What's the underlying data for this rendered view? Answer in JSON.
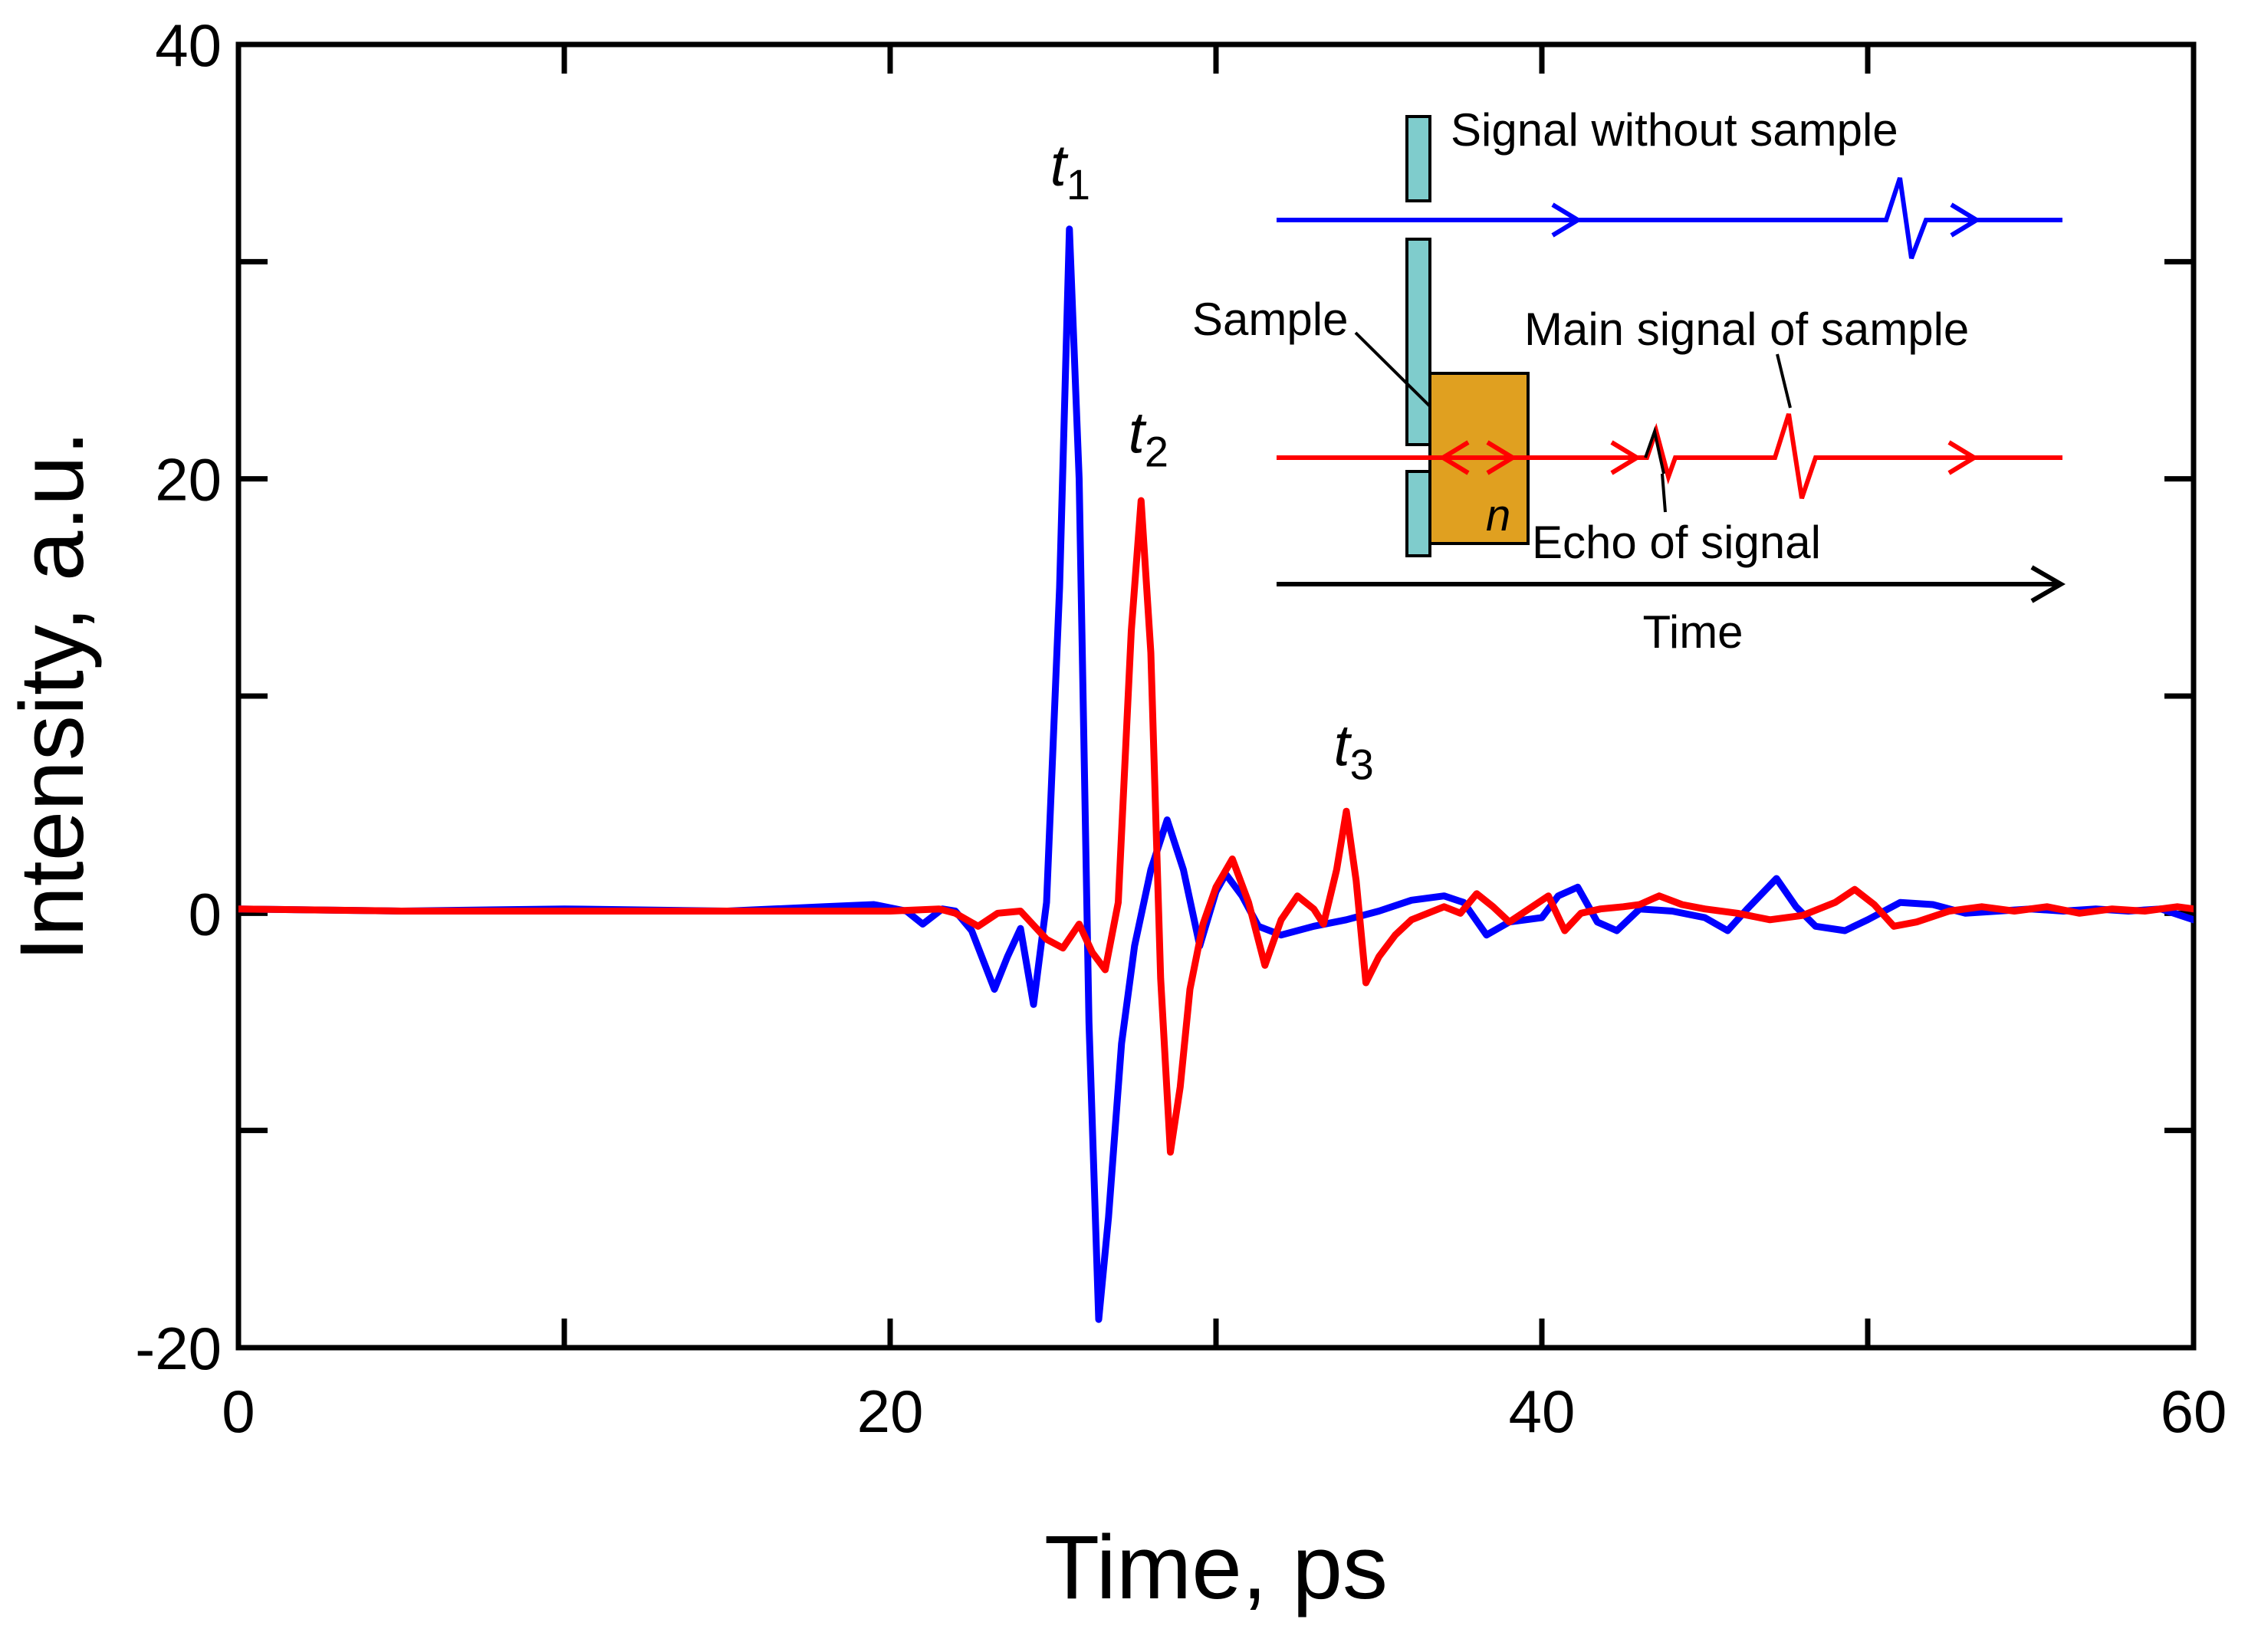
{
  "chart_data": {
    "type": "line",
    "title": "",
    "xlabel": "Time, ps",
    "ylabel": "Intensity, a.u.",
    "xlim": [
      0,
      60
    ],
    "ylim": [
      -20,
      40
    ],
    "x_ticks": [
      0,
      20,
      40,
      60
    ],
    "x_minor_ticks": [
      10,
      30,
      50
    ],
    "y_ticks": [
      -20,
      0,
      20,
      40
    ],
    "y_minor_ticks": [
      -10,
      10,
      30
    ],
    "x_tick_labels": [
      "0",
      "20",
      "40",
      "60"
    ],
    "y_tick_labels": [
      "-20",
      "0",
      "20",
      "40"
    ],
    "grid": false,
    "series": [
      {
        "name": "Signal without sample",
        "color": "#0000ff",
        "points": [
          [
            0,
            0.2
          ],
          [
            5,
            0.1
          ],
          [
            10,
            0.2
          ],
          [
            15,
            0.1
          ],
          [
            18,
            0.3
          ],
          [
            19.5,
            0.4
          ],
          [
            20.5,
            0.1
          ],
          [
            21,
            -0.5
          ],
          [
            21.6,
            0.2
          ],
          [
            22,
            0.1
          ],
          [
            22.5,
            -0.8
          ],
          [
            23.2,
            -3.5
          ],
          [
            23.6,
            -2
          ],
          [
            24,
            -0.7
          ],
          [
            24.4,
            -4.2
          ],
          [
            24.8,
            0.5
          ],
          [
            25.2,
            15
          ],
          [
            25.5,
            31.5
          ],
          [
            25.8,
            20
          ],
          [
            26.1,
            -5
          ],
          [
            26.4,
            -18.7
          ],
          [
            26.7,
            -14
          ],
          [
            27.1,
            -6
          ],
          [
            27.5,
            -1.5
          ],
          [
            28,
            2
          ],
          [
            28.5,
            4.3
          ],
          [
            29,
            2
          ],
          [
            29.5,
            -1.5
          ],
          [
            30,
            1
          ],
          [
            30.3,
            1.8
          ],
          [
            30.8,
            0.8
          ],
          [
            31.3,
            -0.6
          ],
          [
            32,
            -1
          ],
          [
            33,
            -0.6
          ],
          [
            34,
            -0.3
          ],
          [
            35,
            0.1
          ],
          [
            36,
            0.6
          ],
          [
            37,
            0.8
          ],
          [
            37.6,
            0.5
          ],
          [
            38.3,
            -1
          ],
          [
            39,
            -0.4
          ],
          [
            40,
            -0.2
          ],
          [
            40.5,
            0.8
          ],
          [
            41.1,
            1.2
          ],
          [
            41.7,
            -0.4
          ],
          [
            42.3,
            -0.8
          ],
          [
            43,
            0.2
          ],
          [
            44,
            0.1
          ],
          [
            45,
            -0.2
          ],
          [
            45.7,
            -0.8
          ],
          [
            46.3,
            0.2
          ],
          [
            47.2,
            1.6
          ],
          [
            47.8,
            0.3
          ],
          [
            48.4,
            -0.6
          ],
          [
            49.3,
            -0.8
          ],
          [
            50,
            -0.3
          ],
          [
            51,
            0.5
          ],
          [
            52,
            0.4
          ],
          [
            53,
            0
          ],
          [
            54,
            0.1
          ],
          [
            55,
            0.2
          ],
          [
            56,
            0.1
          ],
          [
            57,
            0.2
          ],
          [
            58,
            0.1
          ],
          [
            59,
            0.2
          ],
          [
            60,
            -0.3
          ]
        ]
      },
      {
        "name": "Main signal of sample",
        "color": "#ff0000",
        "points": [
          [
            0,
            0.2
          ],
          [
            5,
            0.1
          ],
          [
            10,
            0.1
          ],
          [
            15,
            0.1
          ],
          [
            20,
            0.1
          ],
          [
            21.5,
            0.2
          ],
          [
            22,
            0
          ],
          [
            22.7,
            -0.6
          ],
          [
            23.3,
            0
          ],
          [
            24,
            0.1
          ],
          [
            24.8,
            -1.2
          ],
          [
            25.3,
            -1.6
          ],
          [
            25.8,
            -0.5
          ],
          [
            26.2,
            -1.8
          ],
          [
            26.6,
            -2.6
          ],
          [
            27,
            0.5
          ],
          [
            27.4,
            13
          ],
          [
            27.7,
            19
          ],
          [
            28,
            12
          ],
          [
            28.3,
            -3
          ],
          [
            28.6,
            -11
          ],
          [
            28.9,
            -8
          ],
          [
            29.2,
            -3.5
          ],
          [
            29.6,
            -0.5
          ],
          [
            30,
            1.2
          ],
          [
            30.5,
            2.5
          ],
          [
            31,
            0.5
          ],
          [
            31.5,
            -2.4
          ],
          [
            32,
            -0.3
          ],
          [
            32.5,
            0.8
          ],
          [
            33,
            0.2
          ],
          [
            33.3,
            -0.5
          ],
          [
            33.7,
            2
          ],
          [
            34,
            4.7
          ],
          [
            34.3,
            1.5
          ],
          [
            34.6,
            -3.2
          ],
          [
            35,
            -2
          ],
          [
            35.5,
            -1
          ],
          [
            36,
            -0.3
          ],
          [
            37,
            0.3
          ],
          [
            37.5,
            0
          ],
          [
            38,
            0.9
          ],
          [
            38.5,
            0.3
          ],
          [
            39,
            -0.4
          ],
          [
            39.6,
            0.2
          ],
          [
            40.2,
            0.8
          ],
          [
            40.7,
            -0.8
          ],
          [
            41.2,
            0
          ],
          [
            41.8,
            0.2
          ],
          [
            42.5,
            0.3
          ],
          [
            43,
            0.4
          ],
          [
            43.6,
            0.8
          ],
          [
            44.3,
            0.4
          ],
          [
            45,
            0.2
          ],
          [
            46,
            0
          ],
          [
            47,
            -0.3
          ],
          [
            48,
            -0.1
          ],
          [
            49,
            0.5
          ],
          [
            49.6,
            1.1
          ],
          [
            50.2,
            0.4
          ],
          [
            50.8,
            -0.6
          ],
          [
            51.5,
            -0.4
          ],
          [
            52.5,
            0.1
          ],
          [
            53.5,
            0.3
          ],
          [
            54.5,
            0.1
          ],
          [
            55.5,
            0.3
          ],
          [
            56.5,
            0
          ],
          [
            57.5,
            0.2
          ],
          [
            58.5,
            0.1
          ],
          [
            59.5,
            0.3
          ],
          [
            60,
            0.2
          ]
        ]
      }
    ],
    "peak_labels": [
      {
        "base": "t",
        "sub": "1",
        "x": 25.5,
        "y": 33.5
      },
      {
        "base": "t",
        "sub": "2",
        "x": 27.9,
        "y": 21.2
      },
      {
        "base": "t",
        "sub": "3",
        "x": 34.2,
        "y": 6.8
      }
    ],
    "inset": {
      "signal_without_sample": "Signal without sample",
      "sample": "Sample",
      "main_signal": "Main signal of sample",
      "echo": "Echo of signal",
      "index_symbol": "n",
      "time": "Time",
      "colors": {
        "blue_line": "#0000ff",
        "red_line": "#ff0000",
        "emitter": "#7fcccc",
        "sample_block": "#e0a020",
        "axis": "#000000"
      }
    }
  }
}
